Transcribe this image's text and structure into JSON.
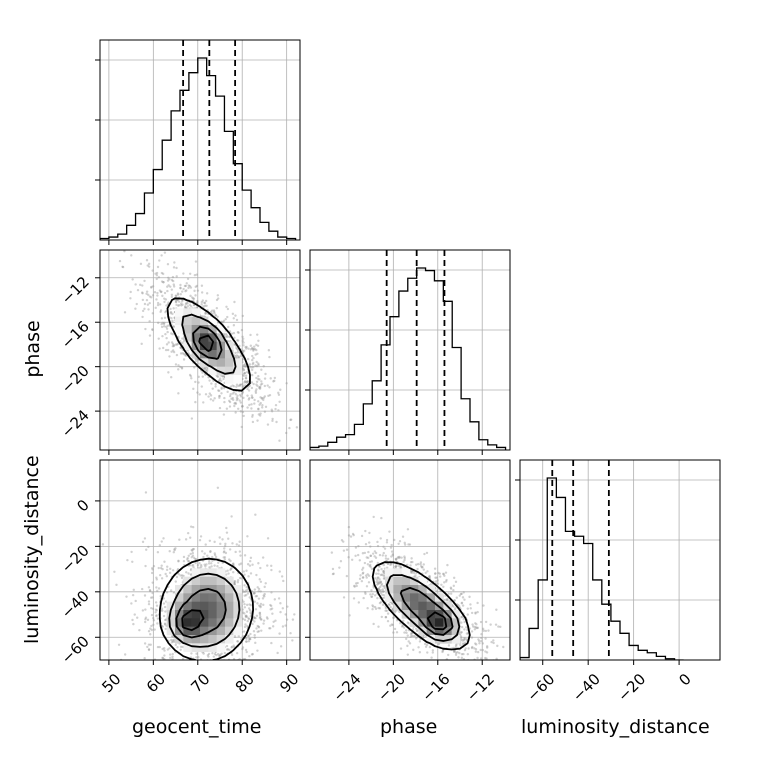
{
  "chart_data": {
    "type": "corner",
    "parameters": [
      "geocent_time",
      "phase",
      "luminosity_distance"
    ],
    "axes": {
      "geocent_time": {
        "range": [
          48,
          93
        ],
        "ticks": [
          50,
          60,
          70,
          80,
          90
        ],
        "tick_labels": [
          "50",
          "60",
          "70",
          "80",
          "90"
        ]
      },
      "phase": {
        "range": [
          -27.5,
          -9.5
        ],
        "ticks": [
          -24,
          -20,
          -16,
          -12
        ],
        "tick_labels": [
          "−24",
          "−20",
          "−16",
          "−12"
        ]
      },
      "luminosity_distance": {
        "range": [
          -70,
          18
        ],
        "ticks": [
          -60,
          -40,
          -20,
          0
        ],
        "tick_labels": [
          "−60",
          "−40",
          "−20",
          "0"
        ]
      }
    },
    "histograms": {
      "geocent_time": {
        "bin_edges": [
          48,
          50,
          52,
          54,
          56,
          58,
          60,
          62,
          64,
          66,
          68,
          70,
          72,
          74,
          76,
          78,
          80,
          82,
          84,
          86,
          88,
          90,
          92
        ],
        "counts": [
          0.5,
          1,
          2,
          5,
          9,
          16,
          24,
          34,
          44,
          51,
          57,
          62,
          56,
          49,
          37,
          26,
          17,
          11,
          6,
          3,
          1,
          0.5
        ],
        "quantiles": [
          66.7,
          72.6,
          78.4
        ]
      },
      "phase": {
        "bin_edges": [
          -27.5,
          -26.7,
          -25.9,
          -25.1,
          -24.3,
          -23.5,
          -22.7,
          -21.9,
          -21.1,
          -20.3,
          -19.5,
          -18.7,
          -17.9,
          -17.1,
          -16.3,
          -15.5,
          -14.7,
          -13.9,
          -13.1,
          -12.3,
          -11.5,
          -10.7,
          -9.9
        ],
        "counts": [
          1,
          1.5,
          3,
          5,
          6,
          10,
          18,
          27,
          41,
          52,
          62,
          67,
          71,
          70,
          66,
          58,
          40,
          20,
          11,
          4,
          2,
          1
        ],
        "quantiles": [
          -20.6,
          -17.9,
          -15.4
        ]
      },
      "luminosity_distance": {
        "bin_edges": [
          -70,
          -66,
          -62,
          -58,
          -54,
          -50,
          -46,
          -42,
          -38,
          -34,
          -30,
          -26,
          -22,
          -18,
          -14,
          -10,
          -6,
          -2,
          2
        ],
        "counts": [
          1,
          13,
          33,
          75,
          67,
          53,
          51,
          48,
          33,
          23,
          16,
          11,
          6,
          4,
          3,
          1.5,
          0.5,
          0
        ],
        "quantiles": [
          -55.8,
          -46.6,
          -30.9
        ]
      }
    },
    "density_2d": [
      {
        "x": "geocent_time",
        "y": "phase",
        "center": [
          72.5,
          -18.0
        ],
        "sigma": [
          5.8,
          2.6
        ],
        "rho": -0.75,
        "peak": [
          71.9,
          -17.8
        ]
      },
      {
        "x": "geocent_time",
        "y": "luminosity_distance",
        "center": [
          72.0,
          -48.0
        ],
        "sigma": [
          6.0,
          13.0
        ],
        "rho": 0.05,
        "peak": [
          67.5,
          -54.0
        ]
      },
      {
        "x": "phase",
        "y": "luminosity_distance",
        "center": [
          -17.5,
          -46.0
        ],
        "sigma": [
          2.5,
          11.0
        ],
        "rho": -0.7,
        "peak": [
          -15.8,
          -54.5
        ]
      }
    ],
    "quantile_lines": "dashed",
    "grid": true
  }
}
